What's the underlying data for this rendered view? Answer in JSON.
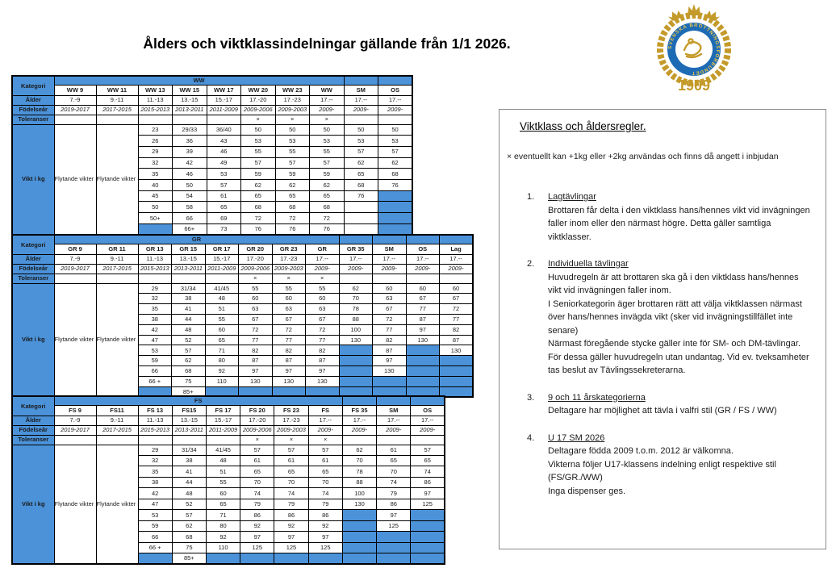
{
  "title": "Ålders och viktklassindelningar gällande från 1/1 2026.",
  "logo": {
    "ring_text": "SVENSKA BROTTNINGSFÖRBUNDET",
    "year": "1909"
  },
  "colors": {
    "table_blue": "#4B92D9",
    "label_yellow": "#FFFF00",
    "logo_gold": "#C49A2A",
    "logo_ring_blue": "#1E6BB5"
  },
  "row_labels": {
    "kategori": "Kategori",
    "alder": "Ålder",
    "fodelsear": "Födelseår",
    "toleranser": "Toleranser",
    "vikt": "Vikt i kg"
  },
  "floating": {
    "col9": "Flytande vikter min vikt 20 kg",
    "col11": "Flytande vikter min 20 kg"
  },
  "tables": [
    {
      "id": "ww",
      "band_label": "WW",
      "columns": [
        "WW 9",
        "WW 11",
        "WW 13",
        "WW 15",
        "WW 17",
        "WW 20",
        "WW 23",
        "WW",
        "SM",
        "OS"
      ],
      "alder": [
        "7.-9",
        "9.-11",
        "11.-13",
        "13.-15",
        "15.-17",
        "17.-20",
        "17.-23",
        "17.--",
        "17.--",
        "17.--"
      ],
      "fodelsear": [
        "2019-2017",
        "2017-2015",
        "2015-2013",
        "2013-2011",
        "2011-2009",
        "2009-2006",
        "2009-2003",
        "2009-",
        "2009-",
        "2009-"
      ],
      "toleranser": [
        "",
        "",
        "",
        "",
        "",
        "×",
        "×",
        "×",
        "",
        ""
      ],
      "weights": [
        [
          "23",
          "29/33",
          "36/40",
          "50",
          "50",
          "50",
          "50",
          "50"
        ],
        [
          "26",
          "36",
          "43",
          "53",
          "53",
          "53",
          "53",
          "53"
        ],
        [
          "29",
          "39",
          "46",
          "55",
          "55",
          "55",
          "57",
          "57"
        ],
        [
          "32",
          "42",
          "49",
          "57",
          "57",
          "57",
          "62",
          "62"
        ],
        [
          "35",
          "46",
          "53",
          "59",
          "59",
          "59",
          "65",
          "68"
        ],
        [
          "40",
          "50",
          "57",
          "62",
          "62",
          "62",
          "68",
          "76"
        ],
        [
          "45",
          "54",
          "61",
          "65",
          "65",
          "65",
          "76",
          null
        ],
        [
          "50",
          "58",
          "65",
          "68",
          "68",
          "68",
          "",
          null
        ],
        [
          "50+",
          "66",
          "69",
          "72",
          "72",
          "72",
          "",
          null
        ],
        [
          null,
          "66+",
          "73",
          "76",
          "76",
          "76",
          "",
          null
        ]
      ]
    },
    {
      "id": "gr",
      "band_label": "GR",
      "columns": [
        "GR 9",
        "GR 11",
        "GR 13",
        "GR 15",
        "GR 17",
        "GR 20",
        "GR 23",
        "GR",
        "GR 35",
        "SM",
        "OS",
        "Lag"
      ],
      "alder": [
        "7.-9",
        "9.-11",
        "11.-13",
        "13.-15",
        "15.-17",
        "17.-20",
        "17.-23",
        "17.--",
        "17.--",
        "17.--",
        "17.--",
        "17.--"
      ],
      "fodelsear": [
        "2019-2017",
        "2017-2015",
        "2015-2013",
        "2013-2011",
        "2011-2009",
        "2009-2006",
        "2009-2003",
        "2009-",
        "2009-",
        "2009-",
        "2009-",
        "2009-"
      ],
      "toleranser": [
        "",
        "",
        "",
        "",
        "",
        "×",
        "×",
        "×",
        "",
        "",
        "",
        ""
      ],
      "weights": [
        [
          "29",
          "31/34",
          "41/45",
          "55",
          "55",
          "55",
          "62",
          "60",
          "60",
          "60"
        ],
        [
          "32",
          "38",
          "48",
          "60",
          "60",
          "60",
          "70",
          "63",
          "67",
          "67"
        ],
        [
          "35",
          "41",
          "51",
          "63",
          "63",
          "63",
          "78",
          "67",
          "77",
          "72"
        ],
        [
          "38",
          "44",
          "55",
          "67",
          "67",
          "67",
          "88",
          "72",
          "87",
          "77"
        ],
        [
          "42",
          "48",
          "60",
          "72",
          "72",
          "72",
          "100",
          "77",
          "97",
          "82"
        ],
        [
          "47",
          "52",
          "65",
          "77",
          "77",
          "77",
          "130",
          "82",
          "130",
          "87"
        ],
        [
          "53",
          "57",
          "71",
          "82",
          "82",
          "82",
          null,
          "87",
          null,
          "130"
        ],
        [
          "59",
          "62",
          "80",
          "87",
          "87",
          "87",
          null,
          "97",
          null,
          null
        ],
        [
          "66",
          "68",
          "92",
          "97",
          "97",
          "97",
          null,
          "130",
          null,
          null
        ],
        [
          "66 +",
          "75",
          "110",
          "130",
          "130",
          "130",
          null,
          null,
          null,
          null
        ],
        [
          null,
          "85+",
          null,
          null,
          null,
          null,
          null,
          null,
          null,
          null
        ]
      ]
    },
    {
      "id": "fs",
      "band_label": "FS",
      "columns": [
        "FS 9",
        "FS11",
        "FS 13",
        "FS15",
        "FS 17",
        "FS 20",
        "FS 23",
        "FS",
        "FS 35",
        "SM",
        "OS"
      ],
      "alder": [
        "7.-9",
        "9.-11",
        "11.-13",
        "13.-15",
        "15.-17",
        "17.-20",
        "17.-23",
        "17.--",
        "17.--",
        "17.--",
        "17.--"
      ],
      "fodelsear": [
        "2019-2017",
        "2017-2015",
        "2015-2013",
        "2013-2011",
        "2011-2009",
        "2009-2006",
        "2009-2003",
        "2009-",
        "2009-",
        "2009-",
        "2009-"
      ],
      "toleranser": [
        "",
        "",
        "",
        "",
        "",
        "×",
        "×",
        "×",
        "",
        "",
        ""
      ],
      "weights": [
        [
          "29",
          "31/34",
          "41/45",
          "57",
          "57",
          "57",
          "62",
          "61",
          "57"
        ],
        [
          "32",
          "38",
          "48",
          "61",
          "61",
          "61",
          "70",
          "65",
          "65"
        ],
        [
          "35",
          "41",
          "51",
          "65",
          "65",
          "65",
          "78",
          "70",
          "74"
        ],
        [
          "38",
          "44",
          "55",
          "70",
          "70",
          "70",
          "88",
          "74",
          "86"
        ],
        [
          "42",
          "48",
          "60",
          "74",
          "74",
          "74",
          "100",
          "79",
          "97"
        ],
        [
          "47",
          "52",
          "65",
          "79",
          "79",
          "79",
          "130",
          "86",
          "125"
        ],
        [
          "53",
          "57",
          "71",
          "86",
          "86",
          "86",
          null,
          "97",
          null
        ],
        [
          "59",
          "62",
          "80",
          "92",
          "92",
          "92",
          null,
          "125",
          null
        ],
        [
          "66",
          "68",
          "92",
          "97",
          "97",
          "97",
          null,
          null,
          null
        ],
        [
          "66 +",
          "75",
          "110",
          "125",
          "125",
          "125",
          null,
          null,
          null
        ],
        [
          null,
          "85+",
          null,
          null,
          null,
          null,
          null,
          null,
          null
        ]
      ]
    }
  ],
  "panel": {
    "title": "Viktklass och åldersregler.",
    "note": "× eventuellt kan +1kg eller +2kg användas och finns då angett i inbjudan",
    "items": [
      {
        "num": "1.",
        "heading": "Lagtävlingar",
        "body": [
          "Brottaren får delta i den viktklass hans/hennes vikt vid invägningen faller inom eller den närmast högre. Detta gäller samtliga viktklasser."
        ]
      },
      {
        "num": "2.",
        "heading": "Individuella tävlingar",
        "body": [
          "Huvudregeln är att brottaren ska gå i den viktklass hans/hennes vikt vid invägningen faller inom.",
          "I Seniorkategorin äger brottaren rätt att välja viktklassen närmast över hans/hennes invägda vikt (sker vid invägningstillfället inte senare)",
          "Närmast föregående stycke gäller inte för SM- och DM-tävlingar. För dessa gäller huvudregeln utan undantag. Vid ev. tveksamheter tas beslut av Tävlingssekreterarna."
        ]
      },
      {
        "num": "3.",
        "heading": "9 och 11 årskategorierna",
        "body": [
          "Deltagare har möjlighet att tävla i valfri stil (GR / FS / WW)"
        ]
      },
      {
        "num": "4.",
        "heading": "U 17 SM 2026",
        "body": [
          "Deltagare födda 2009 t.o.m. 2012 är välkomna.",
          "Vikterna följer U17-klassens indelning enligt respektive stil (FS/GR./WW)",
          "Inga dispenser ges."
        ]
      }
    ]
  }
}
